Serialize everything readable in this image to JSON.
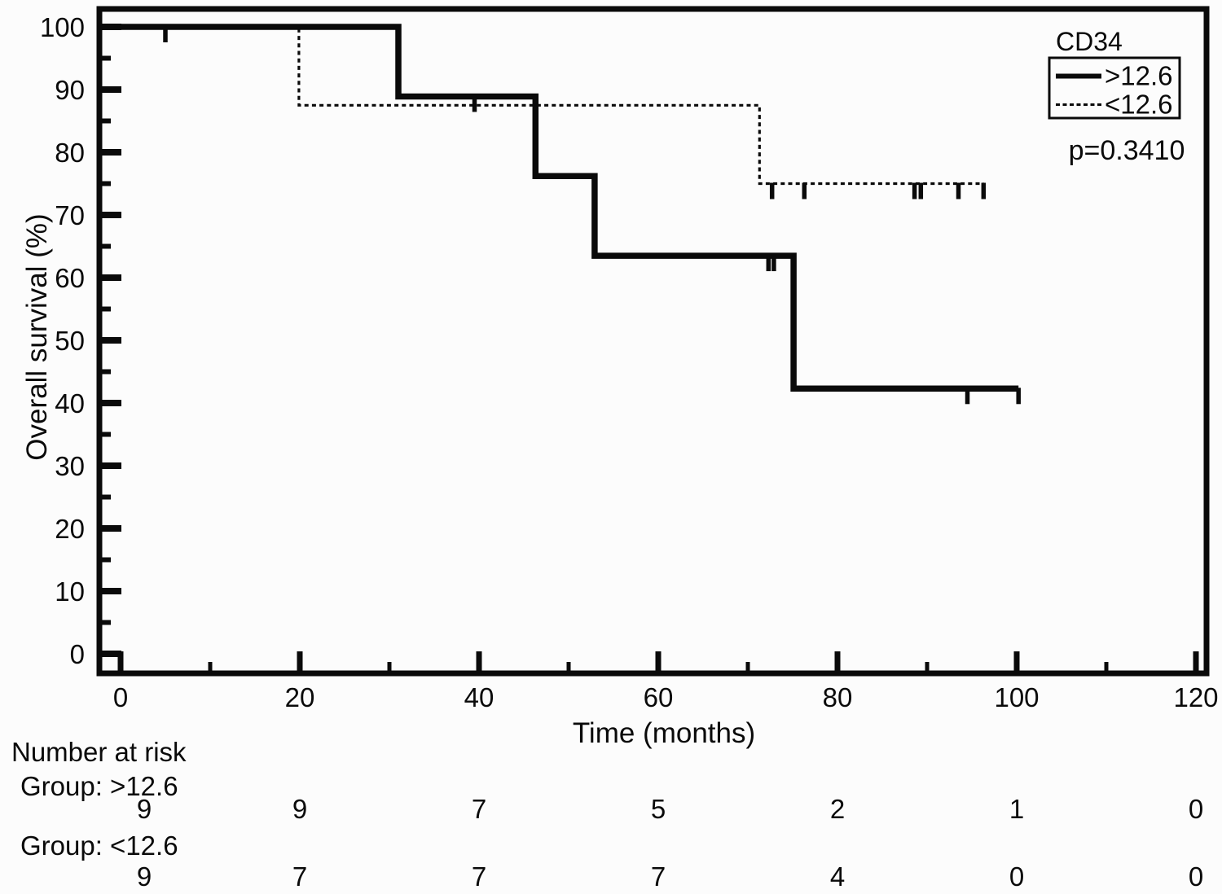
{
  "figure": {
    "background": "#fcfcfc",
    "ink": "#0a0a0a"
  },
  "chart_data": {
    "type": "line",
    "subtype": "kaplan_meier_step",
    "title": "",
    "xlabel": "Time (months)",
    "ylabel": "Overall survival (%)",
    "xlim": [
      0,
      120
    ],
    "ylim": [
      0,
      100
    ],
    "grid": false,
    "xticks": [
      0,
      20,
      40,
      60,
      80,
      100,
      120
    ],
    "xticks_minor": [
      10,
      30,
      50,
      70,
      90,
      110
    ],
    "yticks": [
      0,
      10,
      20,
      30,
      40,
      50,
      60,
      70,
      80,
      90,
      100
    ],
    "yticks_minor": [
      5,
      15,
      25,
      35,
      45,
      55,
      65,
      75,
      85,
      95
    ],
    "legend": {
      "title": "CD34",
      "position": "top-right",
      "entries": [
        {
          "label": ">12.6",
          "style": "solid"
        },
        {
          "label": "<12.6",
          "style": "dashed"
        }
      ]
    },
    "annotation": "p=0.3410",
    "series": [
      {
        "name": ">12.6",
        "style": "solid",
        "points": [
          [
            0,
            100
          ],
          [
            31,
            100
          ],
          [
            31,
            88.9
          ],
          [
            46.3,
            88.9
          ],
          [
            46.3,
            76.2
          ],
          [
            52.9,
            76.2
          ],
          [
            52.9,
            63.5
          ],
          [
            75.1,
            63.5
          ],
          [
            75.1,
            42.3
          ],
          [
            100.2,
            42.3
          ]
        ],
        "censor_marks": [
          [
            39.5,
            88.9
          ],
          [
            72.3,
            63.5
          ],
          [
            72.9,
            63.5
          ],
          [
            94.5,
            42.3
          ],
          [
            100.2,
            42.3
          ]
        ]
      },
      {
        "name": "<12.6",
        "style": "dashed",
        "points": [
          [
            0,
            100
          ],
          [
            19.9,
            100
          ],
          [
            19.9,
            87.5
          ],
          [
            71.3,
            87.5
          ],
          [
            71.3,
            75
          ],
          [
            96.3,
            75
          ]
        ],
        "censor_marks": [
          [
            5,
            100
          ],
          [
            72.7,
            75
          ],
          [
            76.3,
            75
          ],
          [
            88.6,
            75
          ],
          [
            89.3,
            75
          ],
          [
            93.5,
            75
          ],
          [
            96.3,
            75
          ]
        ]
      }
    ],
    "risk_table": {
      "header": "Number at risk",
      "times": [
        0,
        20,
        40,
        60,
        80,
        100,
        120
      ],
      "rows": [
        {
          "label": "Group: >12.6",
          "values": [
            9,
            9,
            7,
            5,
            2,
            1,
            0
          ]
        },
        {
          "label": "Group: <12.6",
          "values": [
            9,
            7,
            7,
            7,
            4,
            0,
            0
          ]
        }
      ]
    }
  }
}
